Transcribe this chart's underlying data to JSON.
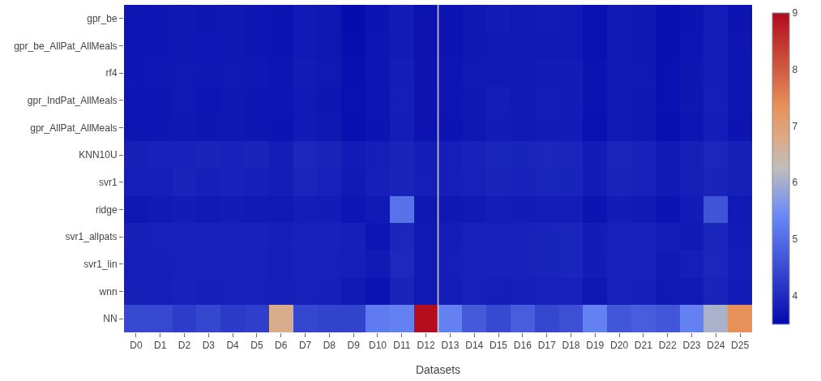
{
  "chart_data": {
    "type": "heatmap",
    "xlabel": "Datasets",
    "categories": [
      "D0",
      "D1",
      "D2",
      "D3",
      "D4",
      "D5",
      "D6",
      "D7",
      "D8",
      "D9",
      "D10",
      "D11",
      "D12",
      "D13",
      "D14",
      "D15",
      "D16",
      "D17",
      "D18",
      "D19",
      "D20",
      "D21",
      "D22",
      "D23",
      "D24",
      "D25"
    ],
    "y_categories": [
      "gpr_be",
      "gpr_be_AllPat_AllMeals",
      "rf4",
      "gpr_IndPat_AllMeals",
      "gpr_AllPat_AllMeals",
      "KNN10U",
      "svr1",
      "ridge",
      "svr1_allpats",
      "svr1_lin",
      "wnn",
      "NN"
    ],
    "cells": [
      [
        3.66,
        3.68,
        3.7,
        3.68,
        3.7,
        3.68,
        3.64,
        3.74,
        3.7,
        3.52,
        3.64,
        3.76,
        3.62,
        3.64,
        3.7,
        3.76,
        3.72,
        3.76,
        3.74,
        3.6,
        3.74,
        3.7,
        3.58,
        3.64,
        3.78,
        3.64
      ],
      [
        3.65,
        3.67,
        3.7,
        3.69,
        3.7,
        3.68,
        3.64,
        3.74,
        3.7,
        3.57,
        3.65,
        3.75,
        3.63,
        3.64,
        3.7,
        3.74,
        3.72,
        3.74,
        3.74,
        3.6,
        3.72,
        3.7,
        3.58,
        3.66,
        3.78,
        3.66
      ],
      [
        3.67,
        3.7,
        3.72,
        3.7,
        3.72,
        3.7,
        3.66,
        3.76,
        3.72,
        3.58,
        3.66,
        3.78,
        3.64,
        3.66,
        3.72,
        3.74,
        3.74,
        3.76,
        3.76,
        3.62,
        3.74,
        3.72,
        3.6,
        3.68,
        3.78,
        3.68
      ],
      [
        3.66,
        3.68,
        3.72,
        3.66,
        3.7,
        3.68,
        3.66,
        3.74,
        3.68,
        3.6,
        3.66,
        3.8,
        3.62,
        3.66,
        3.7,
        3.78,
        3.74,
        3.78,
        3.76,
        3.62,
        3.74,
        3.7,
        3.6,
        3.68,
        3.8,
        3.68
      ],
      [
        3.66,
        3.68,
        3.7,
        3.68,
        3.7,
        3.68,
        3.64,
        3.74,
        3.7,
        3.58,
        3.64,
        3.78,
        3.62,
        3.64,
        3.7,
        3.76,
        3.74,
        3.76,
        3.76,
        3.6,
        3.74,
        3.7,
        3.58,
        3.66,
        3.78,
        3.64
      ],
      [
        3.82,
        3.86,
        3.86,
        3.88,
        3.86,
        3.88,
        3.78,
        3.92,
        3.88,
        3.76,
        3.8,
        3.88,
        3.78,
        3.8,
        3.86,
        3.9,
        3.88,
        3.92,
        3.9,
        3.76,
        3.9,
        3.86,
        3.74,
        3.82,
        3.92,
        3.82
      ],
      [
        3.8,
        3.8,
        3.88,
        3.82,
        3.86,
        3.82,
        3.78,
        3.9,
        3.84,
        3.74,
        3.82,
        3.88,
        3.8,
        3.8,
        3.84,
        3.88,
        3.86,
        3.9,
        3.88,
        3.76,
        3.88,
        3.84,
        3.74,
        3.82,
        3.88,
        3.82
      ],
      [
        3.7,
        3.74,
        3.76,
        3.74,
        3.76,
        3.74,
        3.72,
        3.78,
        3.76,
        3.66,
        3.74,
        5.08,
        3.7,
        3.7,
        3.74,
        3.78,
        3.76,
        3.78,
        3.78,
        3.64,
        3.76,
        3.74,
        3.64,
        3.76,
        4.62,
        3.74
      ],
      [
        3.82,
        3.84,
        3.84,
        3.84,
        3.86,
        3.86,
        3.82,
        3.86,
        3.86,
        3.82,
        3.66,
        3.92,
        3.74,
        3.78,
        3.84,
        3.84,
        3.86,
        3.88,
        3.9,
        3.76,
        3.86,
        3.86,
        3.78,
        3.74,
        3.9,
        3.76
      ],
      [
        3.8,
        3.82,
        3.84,
        3.84,
        3.84,
        3.84,
        3.8,
        3.84,
        3.84,
        3.8,
        3.74,
        3.94,
        3.74,
        3.8,
        3.84,
        3.86,
        3.86,
        3.88,
        3.9,
        3.76,
        3.84,
        3.84,
        3.74,
        3.8,
        3.92,
        3.78
      ],
      [
        3.82,
        3.82,
        3.86,
        3.82,
        3.84,
        3.84,
        3.82,
        3.84,
        3.82,
        3.72,
        3.62,
        3.88,
        3.72,
        3.78,
        3.84,
        3.8,
        3.82,
        3.86,
        3.86,
        3.7,
        3.84,
        3.82,
        3.72,
        3.74,
        3.88,
        3.76
      ],
      [
        4.45,
        4.42,
        4.25,
        4.4,
        4.22,
        4.3,
        6.72,
        4.4,
        4.35,
        4.35,
        5.2,
        5.3,
        8.95,
        5.3,
        4.7,
        4.45,
        4.75,
        4.4,
        4.55,
        5.3,
        4.65,
        4.75,
        4.65,
        5.3,
        6.05,
        7.35
      ]
    ],
    "clim": [
      3.49,
      9.0
    ],
    "cticks": [
      4,
      5,
      6,
      7,
      8,
      9
    ]
  }
}
